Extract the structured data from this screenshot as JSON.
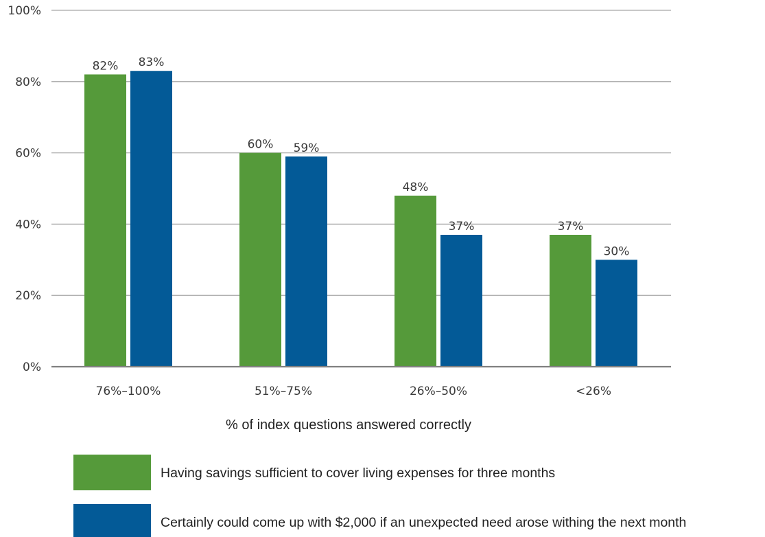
{
  "chart_data": {
    "type": "bar",
    "categories": [
      "76%–100%",
      "51%–75%",
      "26%–50%",
      "<26%"
    ],
    "series": [
      {
        "name": "Having savings sufficient to cover living expenses for three months",
        "values": [
          82,
          60,
          48,
          37
        ],
        "labels": [
          "82%",
          "60%",
          "48%",
          "37%"
        ],
        "color": "#559a3a"
      },
      {
        "name": "Certainly could come up with $2,000 if an unexpected need arose withing the next month",
        "values": [
          83,
          59,
          37,
          30
        ],
        "labels": [
          "83%",
          "59%",
          "37%",
          "30%"
        ],
        "color": "#035a97"
      }
    ],
    "xlabel": "% of index questions answered correctly",
    "ylabel": "",
    "ylim": [
      0,
      100
    ],
    "yticks": [
      0,
      20,
      40,
      60,
      80,
      100
    ],
    "ytick_labels": [
      "0%",
      "20%",
      "40%",
      "60%",
      "80%",
      "100%"
    ],
    "grid": true,
    "legend_position": "bottom"
  },
  "colors": {
    "grid": "#a6a6a6",
    "axis": "#808080",
    "text": "#3a3a3a"
  }
}
